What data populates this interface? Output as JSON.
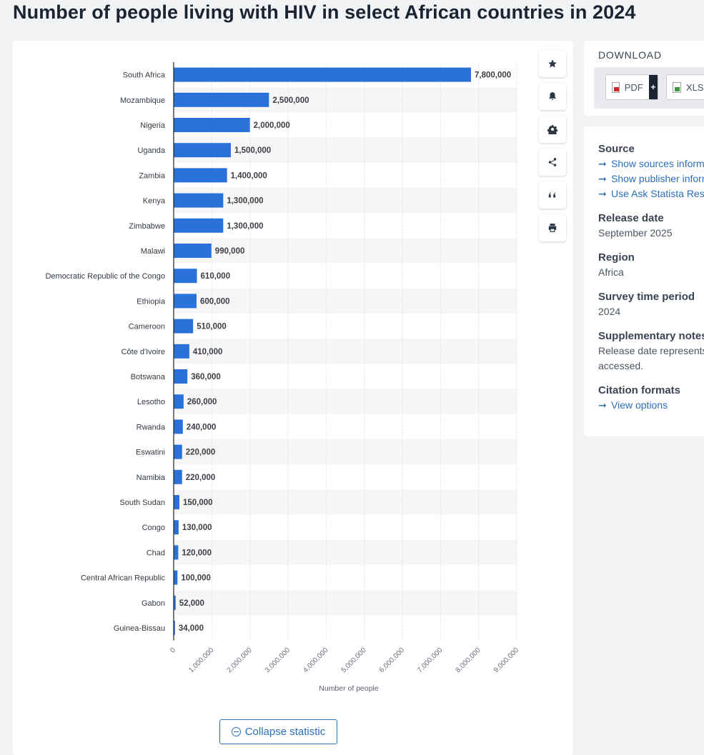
{
  "page": {
    "title": "Number of people living with HIV in select African countries in 2024"
  },
  "colors": {
    "bar": "#2a72d9",
    "stripe": "#f6f6f7",
    "axis": "#222222"
  },
  "chart_data": {
    "type": "bar",
    "orientation": "horizontal",
    "categories": [
      "South Africa",
      "Mozambique",
      "Nigeria",
      "Uganda",
      "Zambia",
      "Kenya",
      "Zimbabwe",
      "Malawi",
      "Democratic Republic of the Congo",
      "Ethiopia",
      "Cameroon",
      "Côte d'Ivoire",
      "Botswana",
      "Lesotho",
      "Rwanda",
      "Eswatini",
      "Namibia",
      "South Sudan",
      "Congo",
      "Chad",
      "Central African Republic",
      "Gabon",
      "Guinea-Bissau"
    ],
    "values": [
      7800000,
      2500000,
      2000000,
      1500000,
      1400000,
      1300000,
      1300000,
      990000,
      610000,
      600000,
      510000,
      410000,
      360000,
      260000,
      240000,
      220000,
      220000,
      150000,
      130000,
      120000,
      100000,
      52000,
      34000
    ],
    "value_labels": [
      "7,800,000",
      "2,500,000",
      "2,000,000",
      "1,500,000",
      "1,400,000",
      "1,300,000",
      "1,300,000",
      "990,000",
      "610,000",
      "600,000",
      "510,000",
      "410,000",
      "360,000",
      "260,000",
      "240,000",
      "220,000",
      "220,000",
      "150,000",
      "130,000",
      "120,000",
      "100,000",
      "52,000",
      "34,000"
    ],
    "xlim": [
      0,
      9000000
    ],
    "ticks": [
      0,
      1000000,
      2000000,
      3000000,
      4000000,
      5000000,
      6000000,
      7000000,
      8000000,
      9000000
    ],
    "tick_labels": [
      "0",
      "1,000,000",
      "2,000,000",
      "3,000,000",
      "4,000,000",
      "5,000,000",
      "6,000,000",
      "7,000,000",
      "8,000,000",
      "9,000,000"
    ],
    "xlabel": "Number of people",
    "grid": true
  },
  "tools": {
    "buttons": [
      {
        "name": "star-icon"
      },
      {
        "name": "bell-icon"
      },
      {
        "name": "gear-icon"
      },
      {
        "name": "share-icon"
      },
      {
        "name": "quote-icon"
      },
      {
        "name": "print-icon"
      }
    ]
  },
  "collapse": {
    "label": "Collapse statistic"
  },
  "download": {
    "title": "DOWNLOAD",
    "pdf_label": "PDF",
    "plus_label": "+",
    "xls_label": "XLS"
  },
  "info": {
    "source_heading": "Source",
    "links": [
      "Show sources information",
      "Show publisher information",
      "Use Ask Statista Research Service"
    ],
    "release_heading": "Release date",
    "release_value": "September 2025",
    "region_heading": "Region",
    "region_value": "Africa",
    "survey_heading": "Survey time period",
    "survey_value": "2024",
    "notes_heading": "Supplementary notes",
    "notes_line1": "Release date represents",
    "notes_line2": "accessed.",
    "citation_heading": "Citation formats",
    "citation_link": "View options"
  }
}
